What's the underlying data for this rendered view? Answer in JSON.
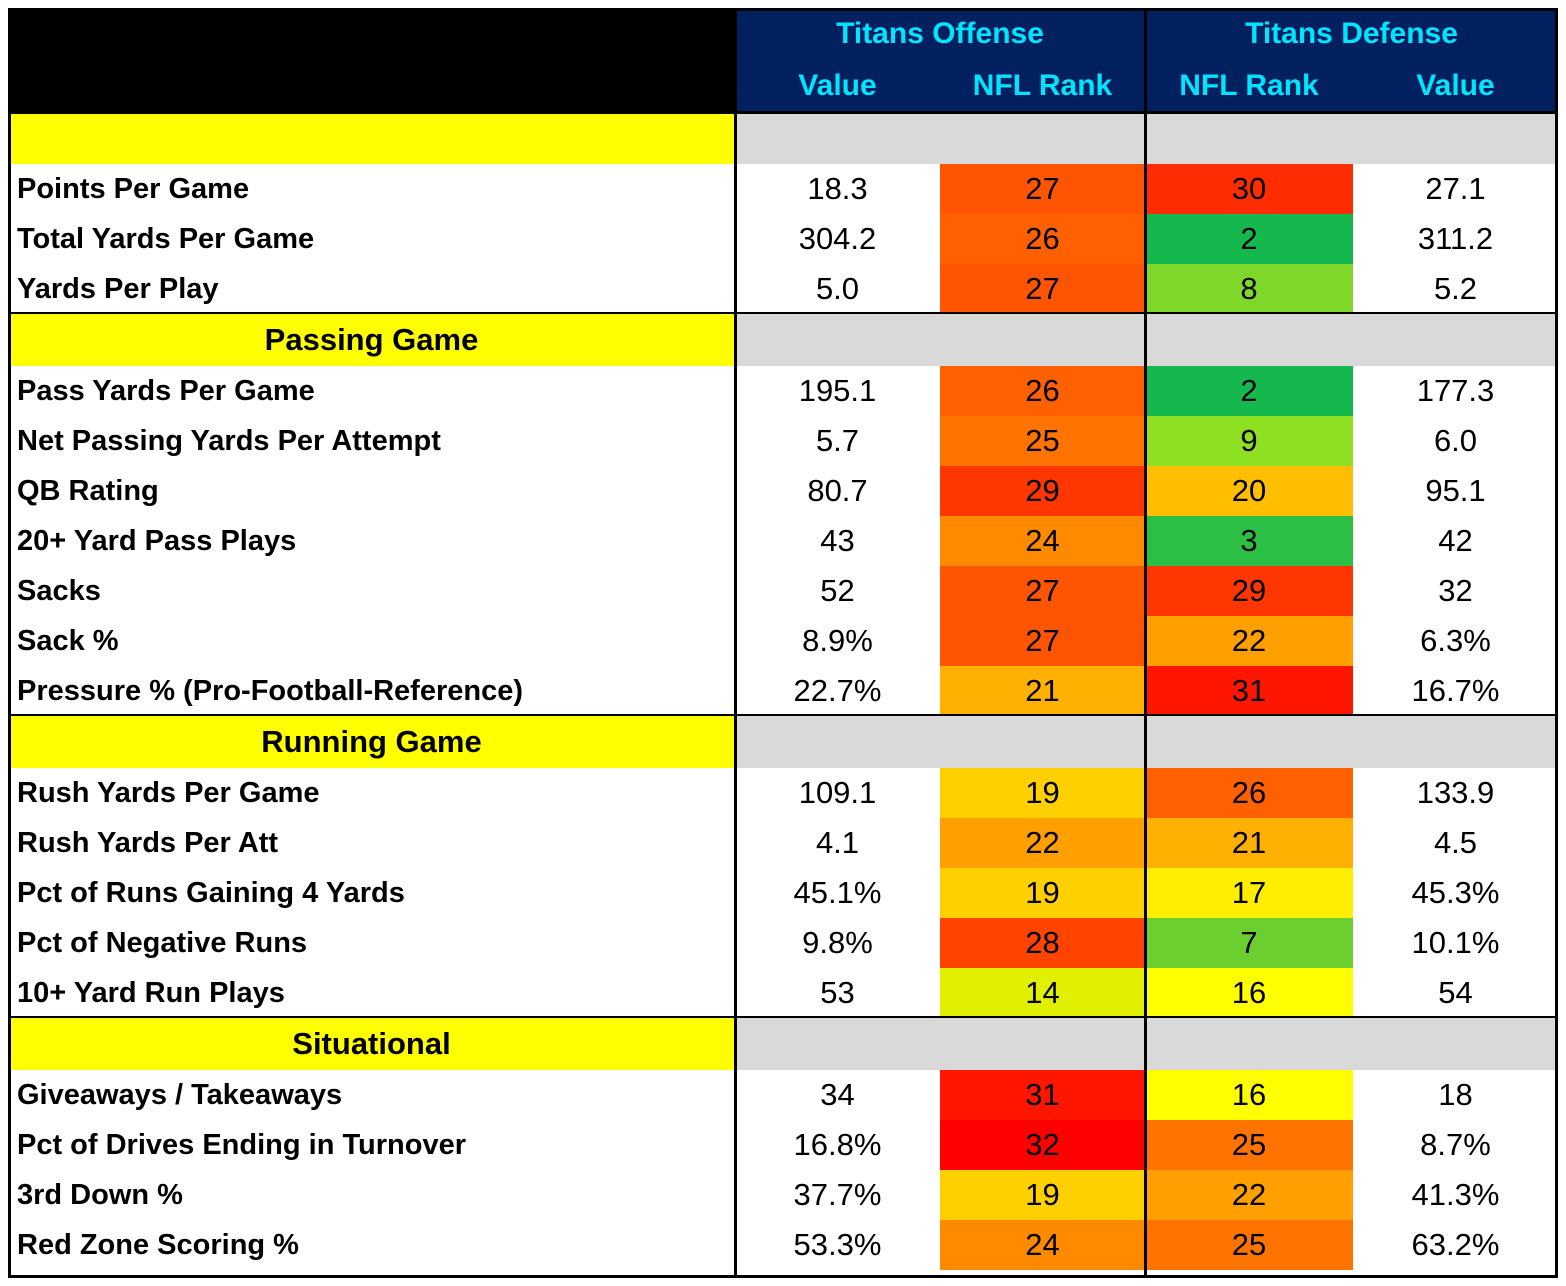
{
  "header": {
    "offense_title": "Titans Offense",
    "defense_title": "Titans Defense",
    "offense_value_label": "Value",
    "offense_rank_label": "NFL Rank",
    "defense_rank_label": "NFL Rank",
    "defense_value_label": "Value"
  },
  "colors": {
    "header_bg": "#002060",
    "header_text": "#00e5ff",
    "section_label_bg": "#ffff00",
    "section_band_bg": "#d9d9d9"
  },
  "sections": [
    {
      "title": "",
      "rows": [
        {
          "label": "Points Per Game",
          "off_value": "18.3",
          "off_rank": "27",
          "off_color": "#ff5500",
          "def_rank": "30",
          "def_color": "#ff2c00",
          "def_value": "27.1"
        },
        {
          "label": "Total Yards Per Game",
          "off_value": "304.2",
          "off_rank": "26",
          "off_color": "#ff6000",
          "def_rank": "2",
          "def_color": "#14b84c",
          "def_value": "311.2"
        },
        {
          "label": "Yards Per Play",
          "off_value": "5.0",
          "off_rank": "27",
          "off_color": "#ff5500",
          "def_rank": "8",
          "def_color": "#7fd829",
          "def_value": "5.2"
        }
      ]
    },
    {
      "title": "Passing Game",
      "rows": [
        {
          "label": "Pass Yards Per Game",
          "off_value": "195.1",
          "off_rank": "26",
          "off_color": "#ff6000",
          "def_rank": "2",
          "def_color": "#14b84c",
          "def_value": "177.3"
        },
        {
          "label": "Net Passing Yards Per Attempt",
          "off_value": "5.7",
          "off_rank": "25",
          "off_color": "#ff7300",
          "def_rank": "9",
          "def_color": "#8ee022",
          "def_value": "6.0"
        },
        {
          "label": "QB Rating",
          "off_value": "80.7",
          "off_rank": "29",
          "off_color": "#ff3600",
          "def_rank": "20",
          "def_color": "#ffbe00",
          "def_value": "95.1"
        },
        {
          "label": "20+ Yard Pass Plays",
          "off_value": "43",
          "off_rank": "24",
          "off_color": "#ff8a00",
          "def_rank": "3",
          "def_color": "#2cbf45",
          "def_value": "42"
        },
        {
          "label": "Sacks",
          "off_value": "52",
          "off_rank": "27",
          "off_color": "#ff5500",
          "def_rank": "29",
          "def_color": "#ff3600",
          "def_value": "32"
        },
        {
          "label": "Sack %",
          "off_value": "8.9%",
          "off_rank": "27",
          "off_color": "#ff5500",
          "def_rank": "22",
          "def_color": "#ffa000",
          "def_value": "6.3%"
        },
        {
          "label": "Pressure % (Pro-Football-Reference)",
          "off_value": "22.7%",
          "off_rank": "21",
          "off_color": "#ffb000",
          "def_rank": "31",
          "def_color": "#ff1600",
          "def_value": "16.7%"
        }
      ]
    },
    {
      "title": "Running Game",
      "rows": [
        {
          "label": "Rush Yards Per Game",
          "off_value": "109.1",
          "off_rank": "19",
          "off_color": "#ffd000",
          "def_rank": "26",
          "def_color": "#ff6000",
          "def_value": "133.9"
        },
        {
          "label": "Rush Yards Per Att",
          "off_value": "4.1",
          "off_rank": "22",
          "off_color": "#ffa000",
          "def_rank": "21",
          "def_color": "#ffb000",
          "def_value": "4.5"
        },
        {
          "label": "Pct of Runs Gaining 4 Yards",
          "off_value": "45.1%",
          "off_rank": "19",
          "off_color": "#ffd000",
          "def_rank": "17",
          "def_color": "#ffee00",
          "def_value": "45.3%"
        },
        {
          "label": "Pct of Negative Runs",
          "off_value": "9.8%",
          "off_rank": "28",
          "off_color": "#ff4400",
          "def_rank": "7",
          "def_color": "#6ccf30",
          "def_value": "10.1%"
        },
        {
          "label": "10+ Yard Run Plays",
          "off_value": "53",
          "off_rank": "14",
          "off_color": "#e0f000",
          "def_rank": "16",
          "def_color": "#ffff00",
          "def_value": "54"
        }
      ]
    },
    {
      "title": "Situational",
      "rows": [
        {
          "label": "Giveaways / Takeaways",
          "off_value": "34",
          "off_rank": "31",
          "off_color": "#ff1600",
          "def_rank": "16",
          "def_color": "#ffff00",
          "def_value": "18"
        },
        {
          "label": "Pct of Drives Ending in Turnover",
          "off_value": "16.8%",
          "off_rank": "32",
          "off_color": "#ff0000",
          "def_rank": "25",
          "def_color": "#ff7300",
          "def_value": "8.7%"
        },
        {
          "label": "3rd Down %",
          "off_value": "37.7%",
          "off_rank": "19",
          "off_color": "#ffd000",
          "def_rank": "22",
          "def_color": "#ffa000",
          "def_value": "41.3%"
        },
        {
          "label": "Red Zone Scoring %",
          "off_value": "53.3%",
          "off_rank": "24",
          "off_color": "#ff8a00",
          "def_rank": "25",
          "def_color": "#ff7300",
          "def_value": "63.2%"
        }
      ]
    }
  ]
}
